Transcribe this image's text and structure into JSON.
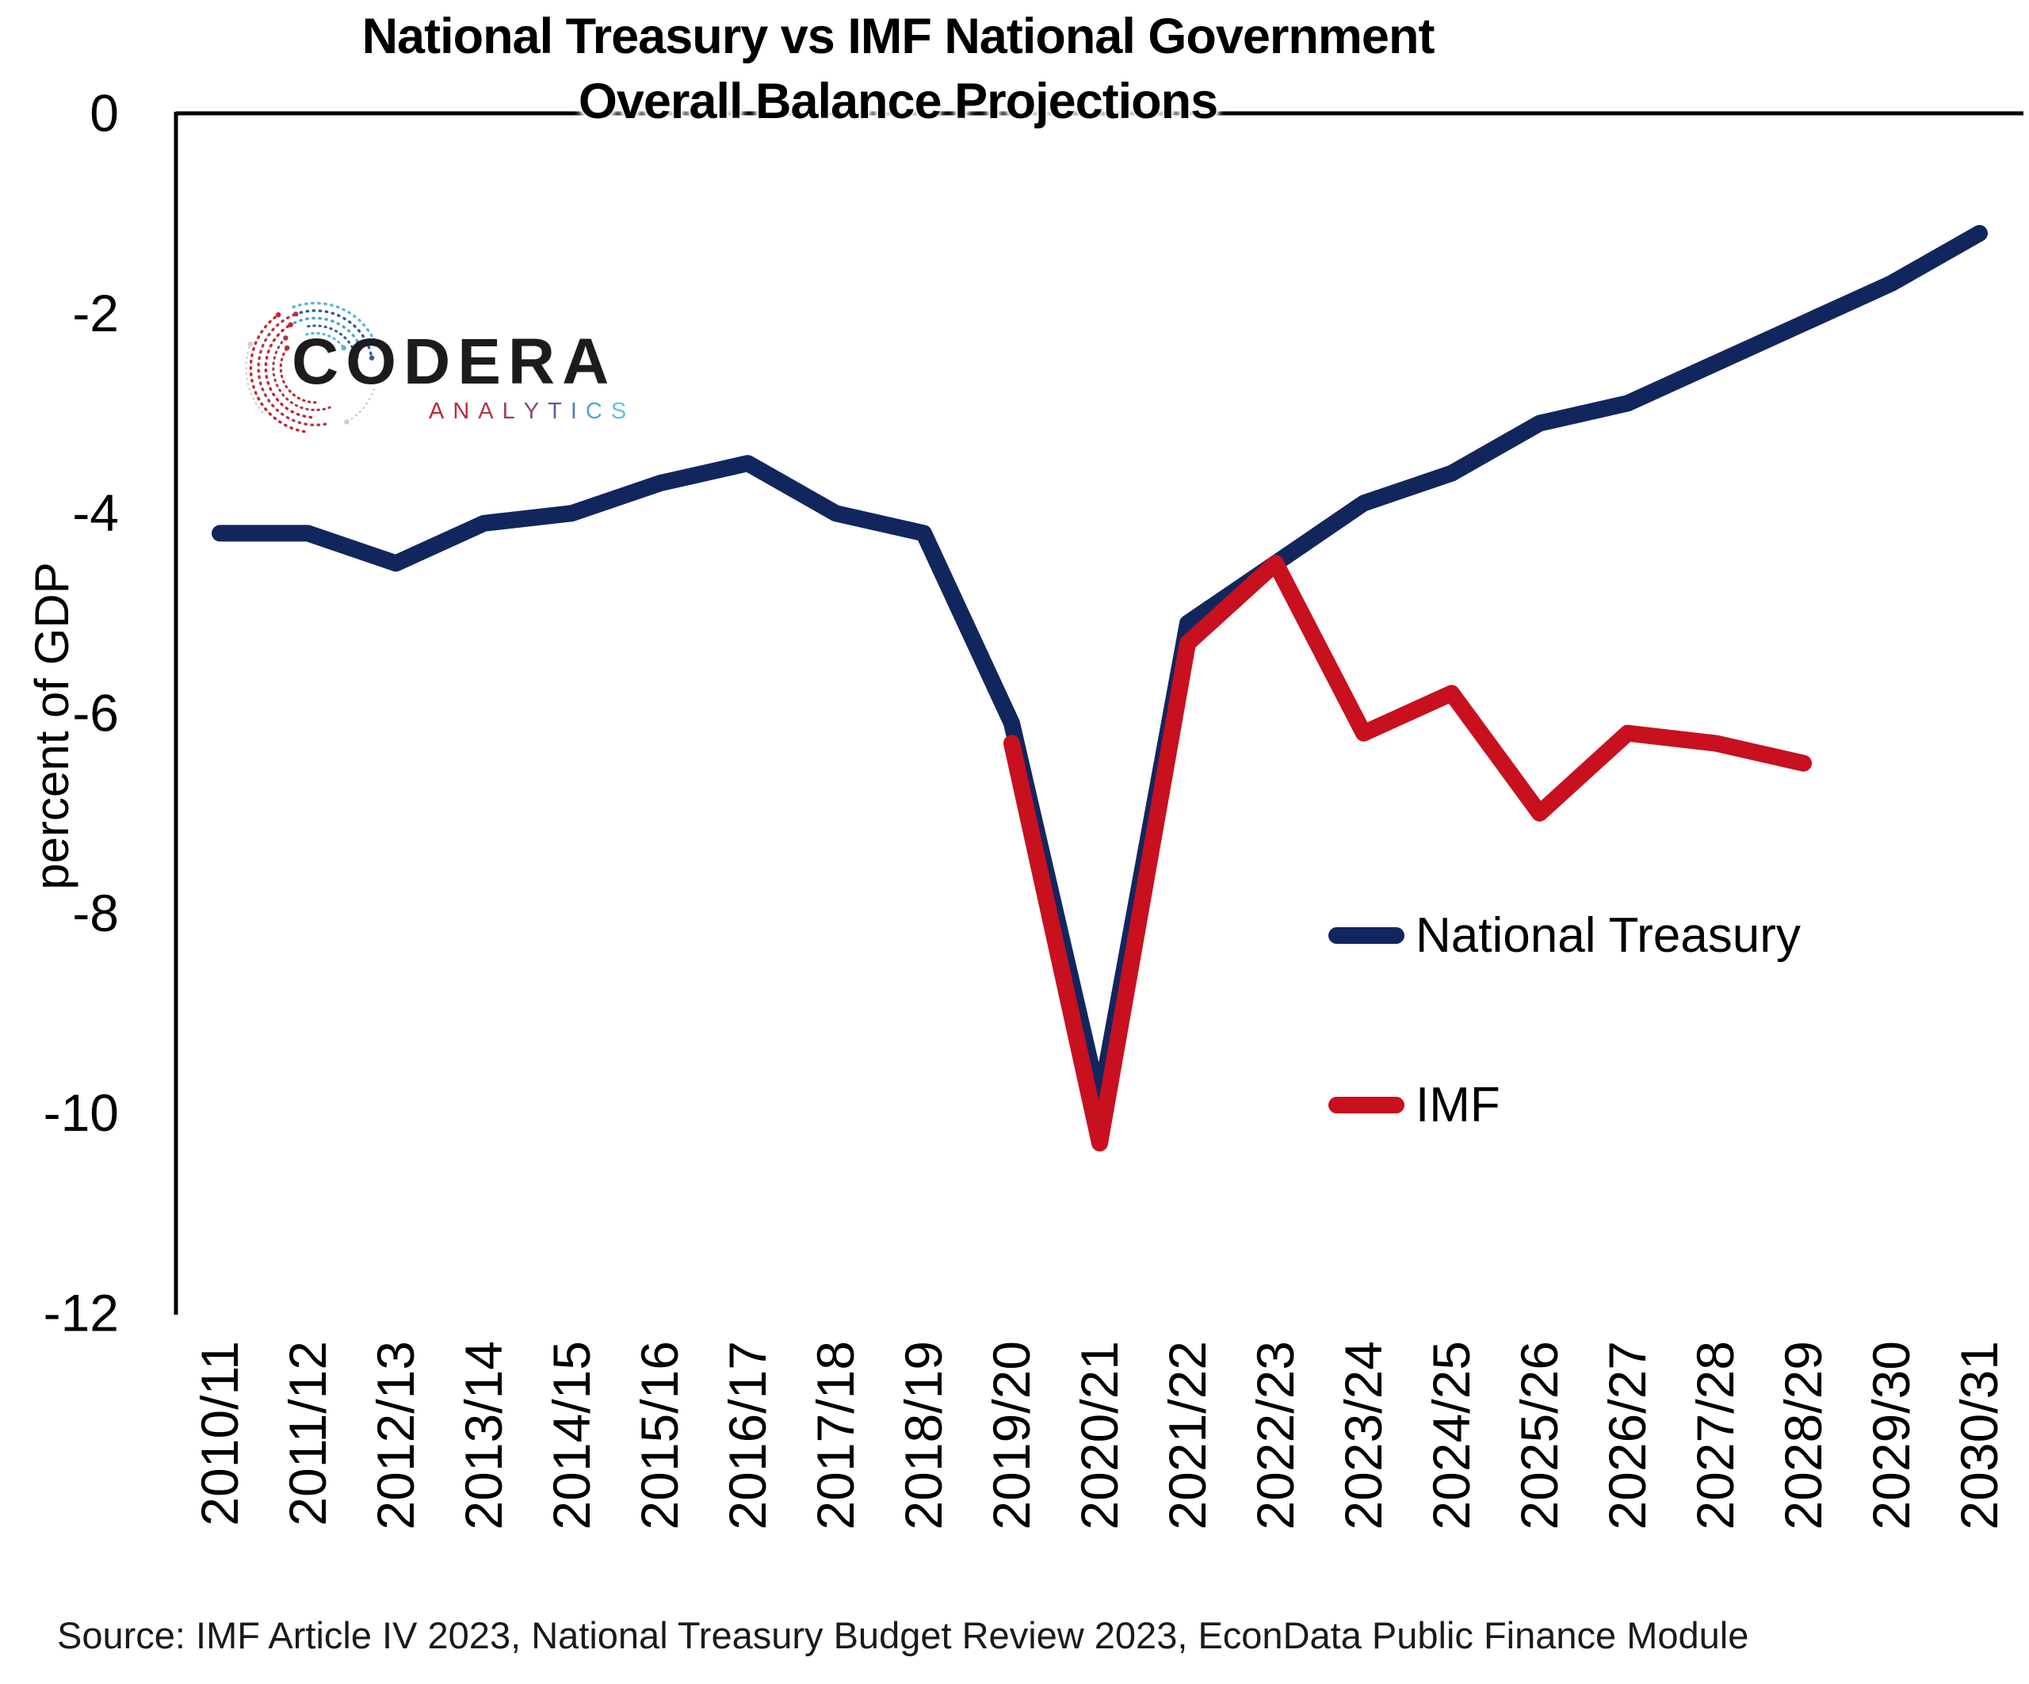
{
  "title": {
    "line1": "National Treasury vs IMF National Government",
    "line2": "Overall Balance Projections"
  },
  "logo": {
    "name": "CODERA",
    "subtitle_letters": [
      {
        "ch": "A",
        "color": "#C2272D"
      },
      {
        "ch": "N",
        "color": "#C02A33"
      },
      {
        "ch": "A",
        "color": "#B53546"
      },
      {
        "ch": "L",
        "color": "#A03E63"
      },
      {
        "ch": "Y",
        "color": "#85497F"
      },
      {
        "ch": "T",
        "color": "#6A549B"
      },
      {
        "ch": "I",
        "color": "#4F7FB5"
      },
      {
        "ch": "C",
        "color": "#4FA6CC"
      },
      {
        "ch": "S",
        "color": "#62C2DE"
      }
    ],
    "brand_red": "#C2272D",
    "brand_blue": "#4FA6CC"
  },
  "legend": [
    {
      "label": "National Treasury",
      "color": "#12265E"
    },
    {
      "label": "IMF",
      "color": "#C8101E"
    }
  ],
  "source": "Source: IMF Article IV 2023, National Treasury Budget Review 2023, EconData Public Finance Module",
  "chart_data": {
    "type": "line",
    "title": "National Treasury vs IMF National Government Overall Balance Projections",
    "xlabel": "",
    "ylabel": "percent of GDP",
    "ylim": [
      -12,
      0
    ],
    "yticks": [
      0,
      -2,
      -4,
      -6,
      -8,
      -10,
      -12
    ],
    "grid": false,
    "legend_position": "inside-right",
    "categories": [
      "2010/11",
      "2011/12",
      "2012/13",
      "2013/14",
      "2014/15",
      "2015/16",
      "2016/17",
      "2017/18",
      "2018/19",
      "2019/20",
      "2020/21",
      "2021/22",
      "2022/23",
      "2023/24",
      "2024/25",
      "2025/26",
      "2026/27",
      "2027/28",
      "2028/29",
      "2029/30",
      "2030/31"
    ],
    "series": [
      {
        "name": "National Treasury",
        "color": "#12265E",
        "values": [
          -4.2,
          -4.2,
          -4.5,
          -4.1,
          -4.0,
          -3.7,
          -3.5,
          -4.0,
          -4.2,
          -6.1,
          -9.9,
          -5.1,
          -4.5,
          -3.9,
          -3.6,
          -3.1,
          -2.9,
          -2.5,
          -2.1,
          -1.7,
          -1.2
        ]
      },
      {
        "name": "IMF",
        "color": "#C8101E",
        "values": [
          null,
          null,
          null,
          null,
          null,
          null,
          null,
          null,
          null,
          -6.3,
          -10.3,
          -5.3,
          -4.5,
          -6.2,
          -5.8,
          -7.0,
          -6.2,
          -6.3,
          -6.5,
          null,
          null
        ]
      }
    ]
  }
}
